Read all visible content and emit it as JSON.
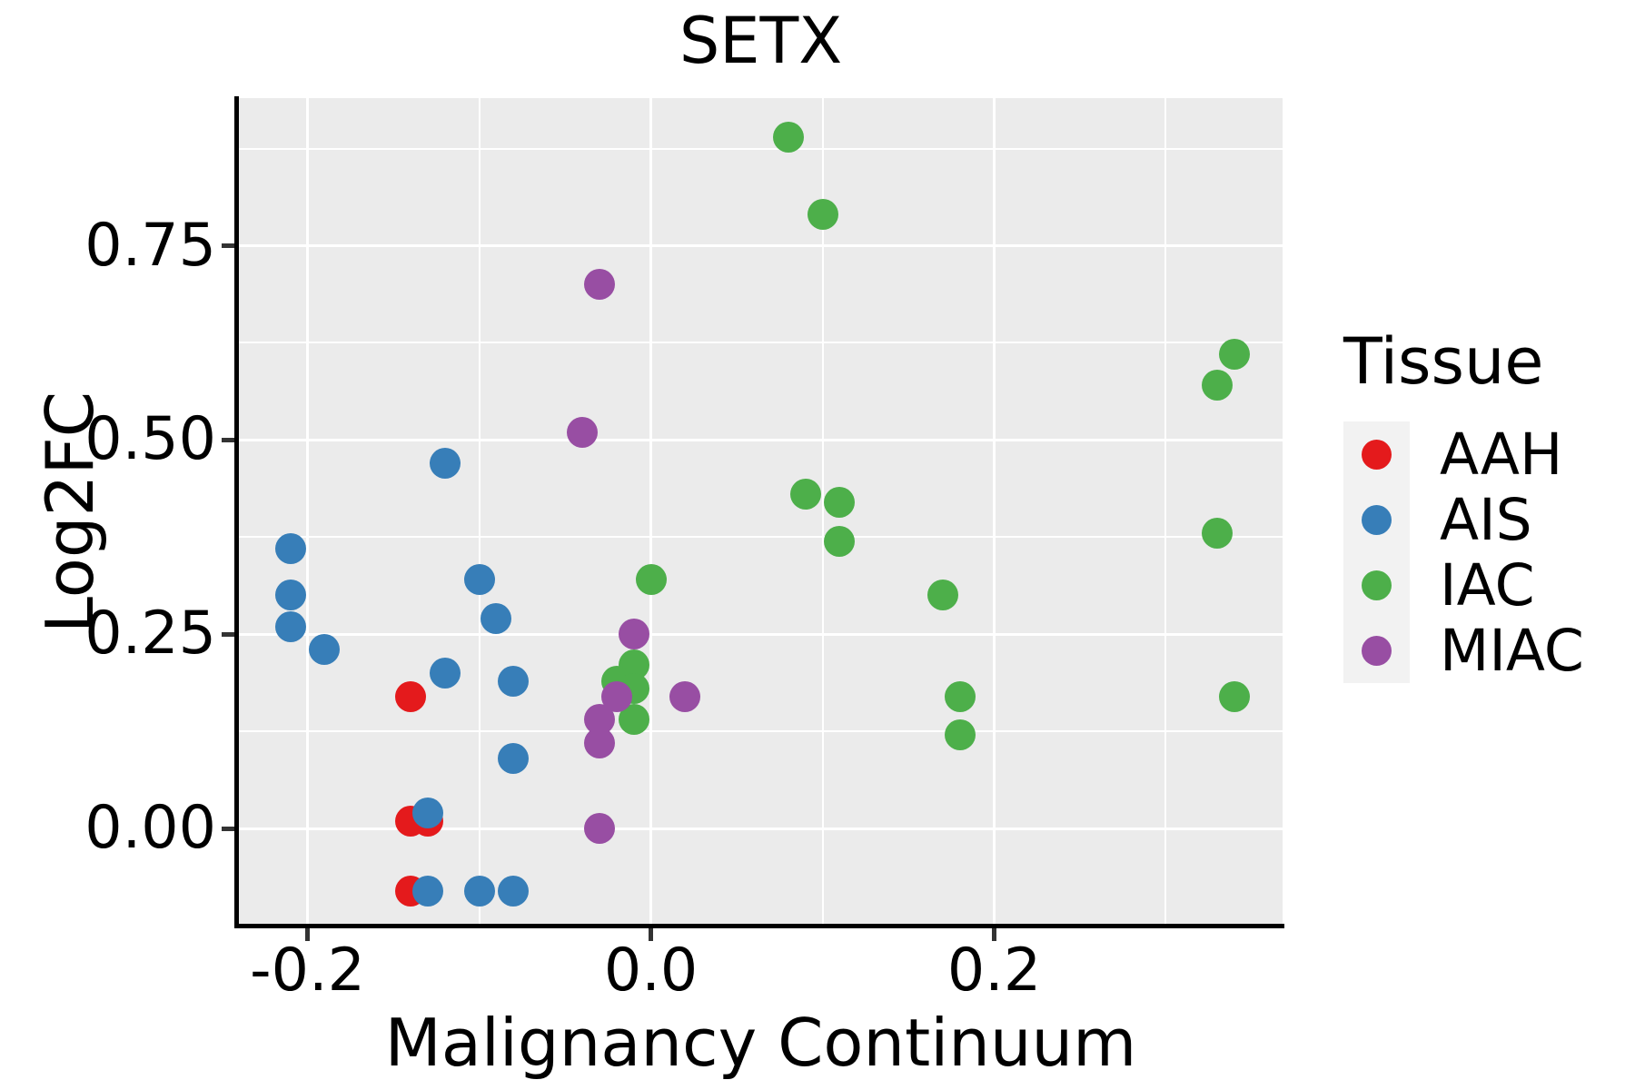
{
  "title": "SETX",
  "chart_data": {
    "type": "scatter",
    "title": "SETX",
    "xlabel": "Malignancy Continuum",
    "ylabel": "Log2FC",
    "xlim": [
      -0.24,
      0.368
    ],
    "ylim": [
      -0.125,
      0.94
    ],
    "grid": true,
    "x_major_ticks": [
      -0.2,
      0.0,
      0.2
    ],
    "x_tick_labels": [
      "-0.2",
      "0.0",
      "0.2"
    ],
    "x_minor_ticks": [
      -0.1,
      0.1,
      0.3
    ],
    "y_major_ticks": [
      0.0,
      0.25,
      0.5,
      0.75
    ],
    "y_tick_labels": [
      "0.00",
      "0.25",
      "0.50",
      "0.75"
    ],
    "y_minor_ticks": [
      0.125,
      0.375,
      0.625,
      0.875
    ],
    "legend_position": "right",
    "legend_title": "Tissue",
    "series": [
      {
        "name": "AAH",
        "color": "#E41A1C",
        "points": [
          [
            -0.14,
            0.17
          ],
          [
            -0.14,
            0.01
          ],
          [
            -0.13,
            0.01
          ],
          [
            -0.14,
            -0.08
          ]
        ]
      },
      {
        "name": "AIS",
        "color": "#377EB8",
        "points": [
          [
            -0.21,
            0.36
          ],
          [
            -0.21,
            0.3
          ],
          [
            -0.21,
            0.26
          ],
          [
            -0.19,
            0.23
          ],
          [
            -0.12,
            0.47
          ],
          [
            -0.1,
            0.32
          ],
          [
            -0.09,
            0.27
          ],
          [
            -0.12,
            0.2
          ],
          [
            -0.08,
            0.19
          ],
          [
            -0.08,
            0.09
          ],
          [
            -0.13,
            0.02
          ],
          [
            -0.13,
            -0.08
          ],
          [
            -0.1,
            -0.08
          ],
          [
            -0.08,
            -0.08
          ]
        ]
      },
      {
        "name": "IAC",
        "color": "#4DAF4A",
        "points": [
          [
            0.08,
            0.89
          ],
          [
            0.1,
            0.79
          ],
          [
            0.09,
            0.43
          ],
          [
            0.11,
            0.42
          ],
          [
            0.11,
            0.37
          ],
          [
            0.17,
            0.3
          ],
          [
            0.0,
            0.32
          ],
          [
            -0.01,
            0.21
          ],
          [
            -0.02,
            0.19
          ],
          [
            -0.01,
            0.18
          ],
          [
            -0.01,
            0.14
          ],
          [
            0.18,
            0.17
          ],
          [
            0.18,
            0.12
          ],
          [
            0.34,
            0.61
          ],
          [
            0.33,
            0.57
          ],
          [
            0.33,
            0.38
          ],
          [
            0.34,
            0.17
          ]
        ]
      },
      {
        "name": "MIAC",
        "color": "#984EA3",
        "points": [
          [
            -0.03,
            0.7
          ],
          [
            -0.04,
            0.51
          ],
          [
            -0.01,
            0.25
          ],
          [
            -0.02,
            0.17
          ],
          [
            -0.03,
            0.14
          ],
          [
            -0.03,
            0.11
          ],
          [
            0.02,
            0.17
          ],
          [
            -0.03,
            0.0
          ]
        ]
      }
    ],
    "panel_bg": "#EBEBEB",
    "grid_color": "#FFFFFF",
    "legend_key_bg": "#F2F2F2",
    "axis_color": "#000000"
  }
}
